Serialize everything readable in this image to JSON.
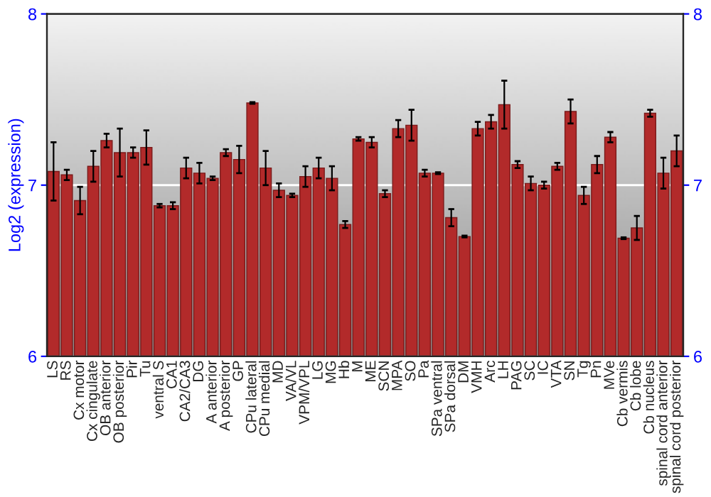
{
  "chart_data": {
    "type": "bar",
    "ylabel": "Log2 (expression)",
    "categories": [
      "LS",
      "RS",
      "Cx motor",
      "Cx cingulate",
      "OB anterior",
      "OB posterior",
      "Pir",
      "Tu",
      "ventral S",
      "CA1",
      "CA2/CA3",
      "DG",
      "A anterior",
      "A posterior",
      "GP",
      "CPu lateral",
      "CPu medial",
      "MD",
      "VA/VL",
      "VPM/VPL",
      "LG",
      "MG",
      "Hb",
      "M",
      "ME",
      "SCN",
      "MPA",
      "SO",
      "Pa",
      "SPa ventral",
      "SPa dorsal",
      "DM",
      "VMH",
      "Arc",
      "LH",
      "PAG",
      "SC",
      "IC",
      "VTA",
      "SN",
      "Tg",
      "Pn",
      "MVe",
      "Cb vermis",
      "Cb lobe",
      "Cb nucleus",
      "spinal cord anterior",
      "spinal cord posterior"
    ],
    "values": [
      7.08,
      7.06,
      6.91,
      7.11,
      7.26,
      7.19,
      7.19,
      7.22,
      6.88,
      6.88,
      7.1,
      7.07,
      7.04,
      7.19,
      7.15,
      7.48,
      7.1,
      6.97,
      6.94,
      7.05,
      7.1,
      7.04,
      6.77,
      7.27,
      7.25,
      6.95,
      7.33,
      7.35,
      7.07,
      7.07,
      6.81,
      6.7,
      7.33,
      7.37,
      7.47,
      7.12,
      7.01,
      7.0,
      7.11,
      7.43,
      6.94,
      7.12,
      7.28,
      6.69,
      6.75,
      7.42,
      7.07,
      7.2
    ],
    "errors": [
      0.17,
      0.03,
      0.08,
      0.09,
      0.04,
      0.14,
      0.03,
      0.1,
      0.01,
      0.02,
      0.06,
      0.06,
      0.01,
      0.02,
      0.08,
      0.005,
      0.1,
      0.04,
      0.01,
      0.06,
      0.06,
      0.07,
      0.02,
      0.01,
      0.03,
      0.02,
      0.05,
      0.09,
      0.02,
      0.005,
      0.05,
      0.005,
      0.04,
      0.04,
      0.14,
      0.02,
      0.04,
      0.02,
      0.02,
      0.07,
      0.05,
      0.05,
      0.03,
      0.005,
      0.07,
      0.02,
      0.09,
      0.09
    ],
    "color": "#b22a2a",
    "ylim": [
      6,
      8
    ],
    "yticks": [
      6,
      7,
      8
    ],
    "y2lim": [
      6,
      8
    ],
    "y2ticks": [
      6,
      7,
      8
    ],
    "grid": "y"
  }
}
